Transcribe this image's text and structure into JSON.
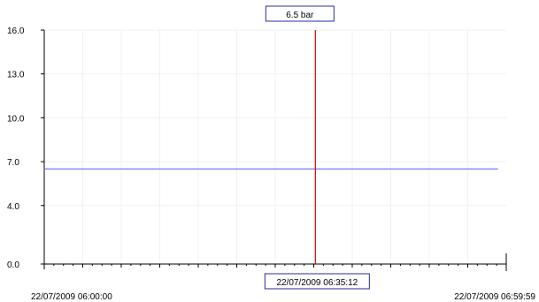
{
  "chart_data": {
    "type": "line",
    "x_start_label": "22/07/2009 06:00:00",
    "x_end_label": "22/07/2009 06:59:59",
    "x_range_seconds": [
      0,
      3599
    ],
    "ylim": [
      0,
      16
    ],
    "y_ticks": [
      {
        "value": 0,
        "label": "0.0"
      },
      {
        "value": 4,
        "label": "4.0"
      },
      {
        "value": 7,
        "label": "7.0"
      },
      {
        "value": 10,
        "label": "10.0"
      },
      {
        "value": 13,
        "label": "13.0"
      },
      {
        "value": 16,
        "label": "16.0"
      }
    ],
    "series": [
      {
        "color": "#6b6bea",
        "x_seconds": [
          0,
          3535
        ],
        "y": [
          6.5,
          6.5
        ]
      }
    ],
    "cursor": {
      "x_seconds": 2112,
      "time_label": "22/07/2009 06:35:12",
      "value_label": "6.5 bar",
      "color": "#e00000"
    },
    "grid": true,
    "grid_color": "#f1f1f1",
    "axis_color": "#000000"
  }
}
